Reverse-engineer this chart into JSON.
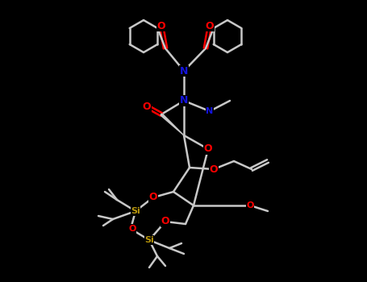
{
  "background_color": "#000000",
  "bond_color": "#c8c8c8",
  "bond_width": 1.8,
  "atom_colors": {
    "O": "#ff0000",
    "N": "#1414dc",
    "Si": "#b8960c",
    "C": "#c8c8c8"
  },
  "figsize": [
    4.55,
    3.5
  ],
  "dpi": 100
}
